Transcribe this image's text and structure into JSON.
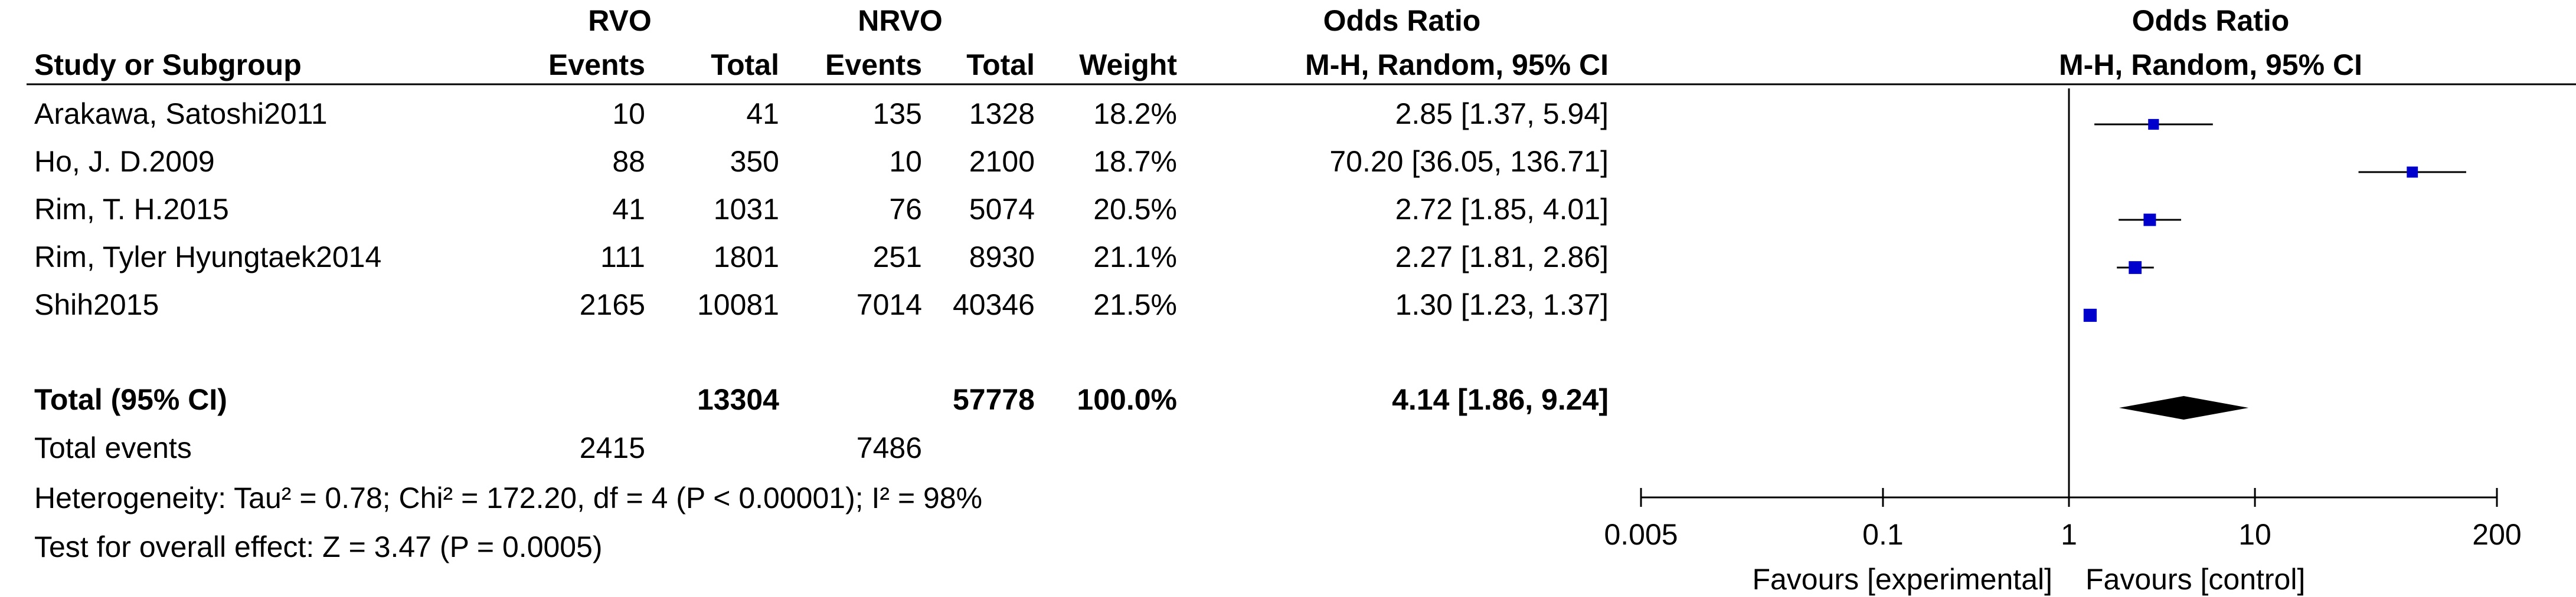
{
  "table": {
    "group_headers": {
      "experimental": "RVO",
      "control": "NRVO",
      "effect_left": "Odds Ratio",
      "effect_right": "Odds Ratio"
    },
    "column_headers": {
      "study": "Study or Subgroup",
      "exp_events": "Events",
      "exp_total": "Total",
      "ctl_events": "Events",
      "ctl_total": "Total",
      "weight": "Weight",
      "effect_left": "M-H, Random, 95% CI",
      "effect_right": "M-H, Random, 95% CI"
    },
    "rows": [
      {
        "study": "Arakawa, Satoshi2011",
        "exp_events": "10",
        "exp_total": "41",
        "ctl_events": "135",
        "ctl_total": "1328",
        "weight": "18.2%",
        "ci_text": "2.85 [1.37, 5.94]"
      },
      {
        "study": "Ho, J. D.2009",
        "exp_events": "88",
        "exp_total": "350",
        "ctl_events": "10",
        "ctl_total": "2100",
        "weight": "18.7%",
        "ci_text": "70.20 [36.05, 136.71]"
      },
      {
        "study": "Rim, T. H.2015",
        "exp_events": "41",
        "exp_total": "1031",
        "ctl_events": "76",
        "ctl_total": "5074",
        "weight": "20.5%",
        "ci_text": "2.72 [1.85, 4.01]"
      },
      {
        "study": "Rim, Tyler Hyungtaek2014",
        "exp_events": "111",
        "exp_total": "1801",
        "ctl_events": "251",
        "ctl_total": "8930",
        "weight": "21.1%",
        "ci_text": "2.27 [1.81, 2.86]"
      },
      {
        "study": "Shih2015",
        "exp_events": "2165",
        "exp_total": "10081",
        "ctl_events": "7014",
        "ctl_total": "40346",
        "weight": "21.5%",
        "ci_text": "1.30 [1.23, 1.37]"
      }
    ],
    "total": {
      "label": "Total (95% CI)",
      "exp_total": "13304",
      "ctl_total": "57778",
      "weight": "100.0%",
      "ci_text": "4.14 [1.86, 9.24]"
    },
    "total_events": {
      "label": "Total events",
      "exp_events": "2415",
      "ctl_events": "7486"
    },
    "heterogeneity": "Heterogeneity: Tau² = 0.78; Chi² = 172.20, df = 4 (P < 0.00001); I² = 98%",
    "overall_effect": "Test for overall effect: Z = 3.47 (P = 0.0005)"
  },
  "chart_data": {
    "type": "forest",
    "x_scale": "log",
    "xlim": [
      0.005,
      200
    ],
    "ticks": [
      {
        "value": 0.005,
        "label": "0.005"
      },
      {
        "value": 0.1,
        "label": "0.1"
      },
      {
        "value": 1,
        "label": "1"
      },
      {
        "value": 10,
        "label": "10"
      },
      {
        "value": 200,
        "label": "200"
      }
    ],
    "reference_line": 1,
    "favours_left": "Favours [experimental]",
    "favours_right": "Favours [control]",
    "studies": [
      {
        "or": 2.85,
        "lower": 1.37,
        "upper": 5.94,
        "weight": 18.2
      },
      {
        "or": 70.2,
        "lower": 36.05,
        "upper": 136.71,
        "weight": 18.7
      },
      {
        "or": 2.72,
        "lower": 1.85,
        "upper": 4.01,
        "weight": 20.5
      },
      {
        "or": 2.27,
        "lower": 1.81,
        "upper": 2.86,
        "weight": 21.1
      },
      {
        "or": 1.3,
        "lower": 1.23,
        "upper": 1.37,
        "weight": 21.5
      }
    ],
    "pooled": {
      "or": 4.14,
      "lower": 1.86,
      "upper": 9.24
    },
    "colors": {
      "marker": "#0000cc",
      "diamond": "#000000",
      "line": "#000000"
    }
  }
}
